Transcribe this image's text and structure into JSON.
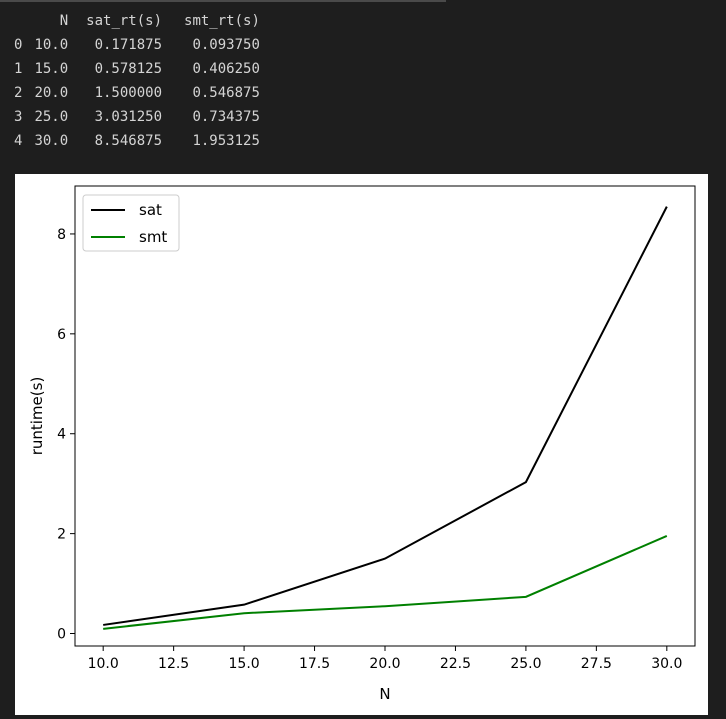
{
  "dataframe": {
    "columns": [
      "",
      "N",
      "sat_rt(s)",
      "smt_rt(s)"
    ],
    "rows": [
      [
        "0",
        "10.0",
        "0.171875",
        "0.093750"
      ],
      [
        "1",
        "15.0",
        "0.578125",
        "0.406250"
      ],
      [
        "2",
        "20.0",
        "1.500000",
        "0.546875"
      ],
      [
        "3",
        "25.0",
        "3.031250",
        "0.734375"
      ],
      [
        "4",
        "30.0",
        "8.546875",
        "1.953125"
      ]
    ]
  },
  "chart_data": {
    "type": "line",
    "title": "",
    "xlabel": "N",
    "ylabel": "runtime(s)",
    "x": [
      10,
      15,
      20,
      25,
      30
    ],
    "xlim": [
      9.0,
      31.0
    ],
    "ylim": [
      -0.25,
      8.96
    ],
    "xticks": [
      10.0,
      12.5,
      15.0,
      17.5,
      20.0,
      22.5,
      25.0,
      27.5,
      30.0
    ],
    "xtick_labels": [
      "10.0",
      "12.5",
      "15.0",
      "17.5",
      "20.0",
      "22.5",
      "25.0",
      "27.5",
      "30.0"
    ],
    "yticks": [
      0,
      2,
      4,
      6,
      8
    ],
    "ytick_labels": [
      "0",
      "2",
      "4",
      "6",
      "8"
    ],
    "grid": false,
    "legend_position": "top-left",
    "series": [
      {
        "name": "sat",
        "color": "#000000",
        "values": [
          0.171875,
          0.578125,
          1.5,
          3.03125,
          8.546875
        ]
      },
      {
        "name": "smt",
        "color": "#008000",
        "values": [
          0.09375,
          0.40625,
          0.546875,
          0.734375,
          1.953125
        ]
      }
    ]
  }
}
